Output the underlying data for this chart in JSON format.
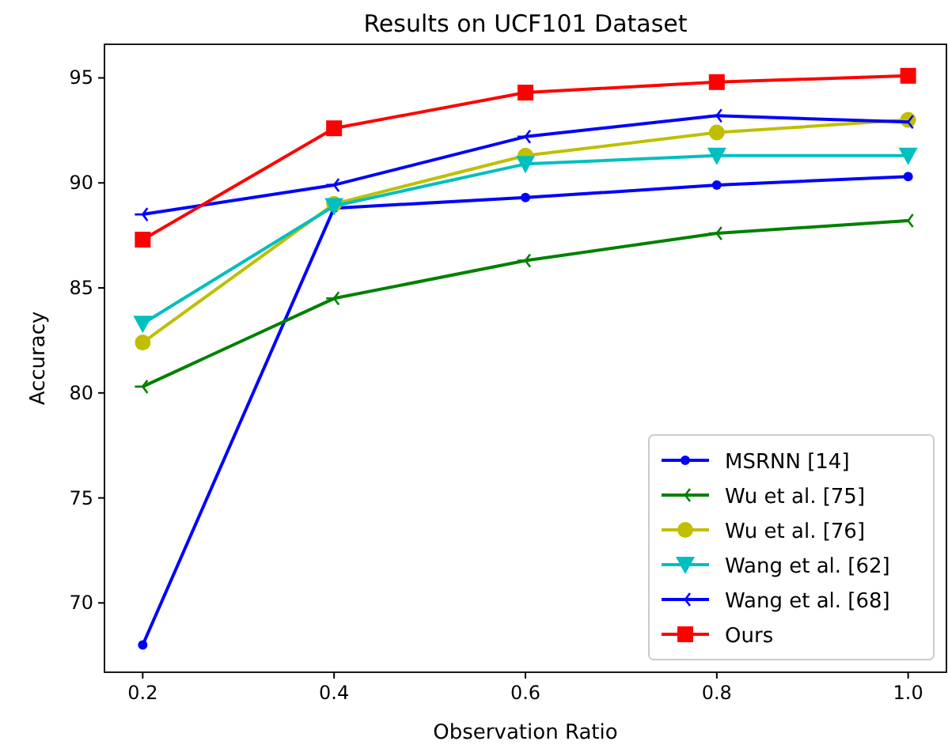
{
  "chart_data": {
    "type": "line",
    "title": "Results on UCF101 Dataset",
    "xlabel": "Observation Ratio",
    "ylabel": "Accuracy",
    "x": [
      0.2,
      0.4,
      0.6,
      0.8,
      1.0
    ],
    "xlim": [
      0.16,
      1.04
    ],
    "xticks": [
      {
        "value": 0.2,
        "label": "0.2"
      },
      {
        "value": 0.4,
        "label": "0.4"
      },
      {
        "value": 0.6,
        "label": "0.6"
      },
      {
        "value": 0.8,
        "label": "0.8"
      },
      {
        "value": 1.0,
        "label": "1.0"
      }
    ],
    "ylim": [
      66.7,
      96.6
    ],
    "yticks": [
      70,
      75,
      80,
      85,
      90,
      95
    ],
    "legend": "bottom right",
    "grid": false,
    "line_style": "solid",
    "series": [
      {
        "name": "MSRNN [14]",
        "color": "#0000ff",
        "marker": "circle",
        "values": [
          68.0,
          88.8,
          89.3,
          89.9,
          90.3
        ]
      },
      {
        "name": "Wu et al. [75]",
        "color": "#008000",
        "marker": "cross",
        "values": [
          80.3,
          84.5,
          86.3,
          87.6,
          88.2
        ]
      },
      {
        "name": "Wu et al. [76]",
        "color": "#bfbf00",
        "marker": "circle",
        "values": [
          82.4,
          89.0,
          91.3,
          92.4,
          93.0
        ]
      },
      {
        "name": "Wang et al. [62]",
        "color": "#00bfbf",
        "marker": "triangle",
        "values": [
          83.3,
          88.9,
          90.9,
          91.3,
          91.3
        ]
      },
      {
        "name": "Wang et al. [68]",
        "color": "#0000ff",
        "marker": "cross",
        "values": [
          88.5,
          89.9,
          92.2,
          93.2,
          92.9
        ]
      },
      {
        "name": "Ours",
        "color": "#ff0000",
        "marker": "square",
        "values": [
          87.3,
          92.6,
          94.3,
          94.8,
          95.1
        ]
      }
    ]
  }
}
